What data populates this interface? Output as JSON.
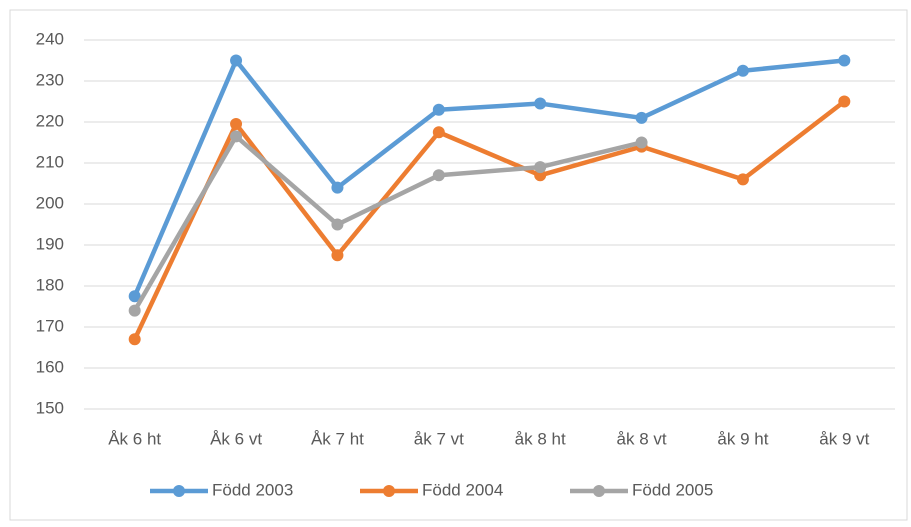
{
  "chart_data": {
    "type": "line",
    "categories": [
      "Åk 6 ht",
      "Åk 6 vt",
      "Åk 7 ht",
      "åk 7 vt",
      "åk 8 ht",
      "åk 8 vt",
      "åk 9 ht",
      "åk 9 vt"
    ],
    "series": [
      {
        "name": "Född 2003",
        "color": "#5b9bd5",
        "values": [
          177.5,
          235,
          204,
          223,
          224.5,
          221,
          232.5,
          235
        ]
      },
      {
        "name": "Född 2004",
        "color": "#ed7d31",
        "values": [
          167,
          219.5,
          187.5,
          217.5,
          207,
          214,
          206,
          225
        ]
      },
      {
        "name": "Född 2005",
        "color": "#a5a5a5",
        "values": [
          174,
          216.5,
          195,
          207,
          209,
          215,
          null,
          null
        ]
      }
    ],
    "ylim": [
      150,
      240
    ],
    "yticks": [
      150,
      160,
      170,
      180,
      190,
      200,
      210,
      220,
      230,
      240
    ],
    "grid": true,
    "legend": "bottom"
  }
}
